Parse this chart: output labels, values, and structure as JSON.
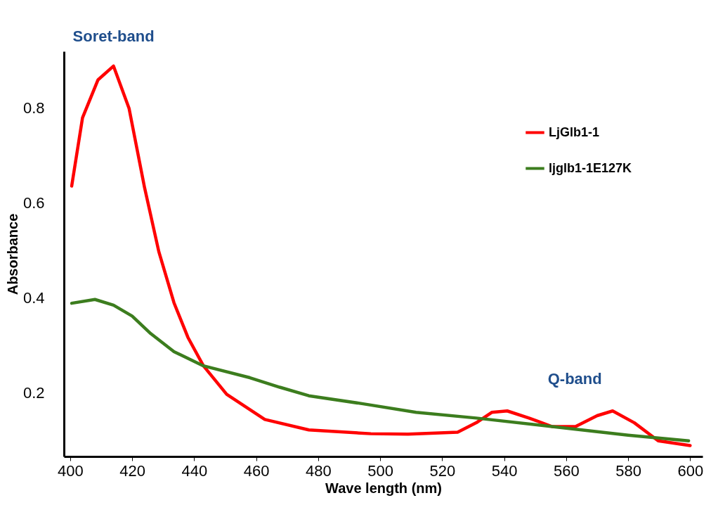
{
  "chart_data": {
    "type": "line",
    "xlabel": "Wave length (nm)",
    "ylabel": "Absorbance",
    "xlim": [
      398,
      604
    ],
    "xticks": [
      400,
      420,
      440,
      460,
      480,
      500,
      520,
      540,
      560,
      580,
      600
    ],
    "ylim": [
      0.066,
      0.92
    ],
    "yticks": [
      {
        "value": 0.2,
        "label": "0.2"
      },
      {
        "value": 0.4,
        "label": "0.4"
      },
      {
        "value": 0.6,
        "label": "0.6"
      },
      {
        "value": 0.8,
        "label": "0.8"
      }
    ],
    "grid": false,
    "legend": "top right",
    "marker": "none",
    "line_style": "solid",
    "annotations": [
      {
        "text": "Soret-band",
        "x": 414,
        "y": 0.889
      },
      "Q-band"
    ],
    "series": [
      {
        "name": "LjGlb1-1",
        "color": "#ff0000",
        "x": [
          400.5,
          404,
          409,
          414,
          419,
          424,
          428.6,
          433.5,
          438,
          443,
          450.5,
          462.8,
          477,
          497,
          509,
          525,
          531,
          536,
          541,
          548,
          555.5,
          563,
          570,
          575,
          582,
          589.7,
          600
        ],
        "values": [
          0.636,
          0.78,
          0.86,
          0.889,
          0.8,
          0.633,
          0.498,
          0.39,
          0.317,
          0.257,
          0.197,
          0.144,
          0.122,
          0.114,
          0.113,
          0.117,
          0.137,
          0.159,
          0.162,
          0.147,
          0.129,
          0.129,
          0.152,
          0.162,
          0.137,
          0.099,
          0.089
        ]
      },
      {
        "name": "ljglb1-1E127K",
        "color": "#3c7d1e",
        "x": [
          400.5,
          408,
          414,
          420,
          426,
          433.5,
          443,
          458,
          467.6,
          477,
          494.5,
          511.6,
          531,
          555.5,
          580,
          599.5
        ],
        "values": [
          0.389,
          0.397,
          0.385,
          0.362,
          0.325,
          0.287,
          0.257,
          0.232,
          0.212,
          0.194,
          0.177,
          0.159,
          0.147,
          0.129,
          0.111,
          0.099
        ]
      }
    ]
  }
}
